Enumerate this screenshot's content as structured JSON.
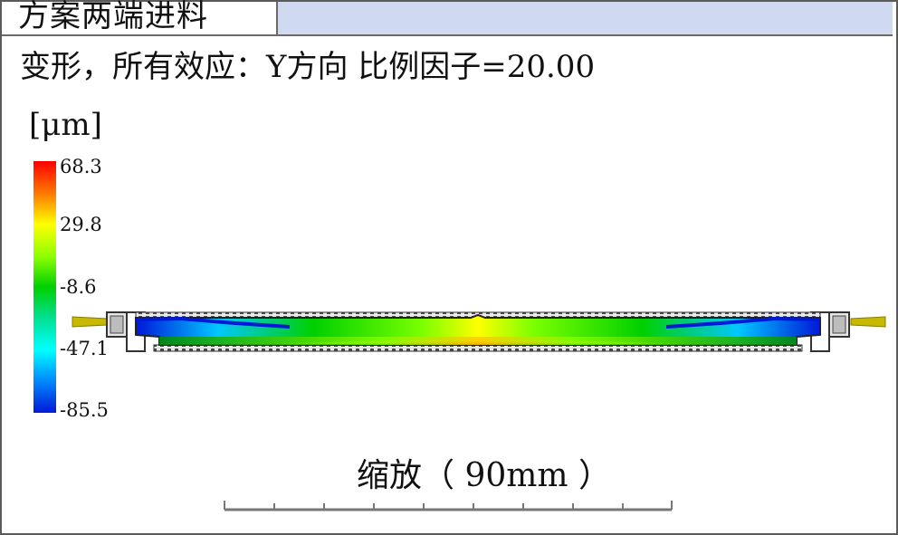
{
  "header": {
    "tab_title": "方案两端进料"
  },
  "plot": {
    "subtitle": "变形，所有效应：Y方向 比例因子=20.00",
    "unit": "[μm]",
    "legend": {
      "max": "68.3",
      "v2": "29.8",
      "v3": "-8.6",
      "v4": "-47.1",
      "min": "-85.5",
      "colors": [
        "#ff0000",
        "#ffff00",
        "#00d000",
        "#00ffff",
        "#0018d8"
      ]
    },
    "scale_bar": {
      "label": "缩放（ 90mm ）"
    }
  },
  "icons": [
    "legend-colorbar",
    "gate-arrow-left-icon",
    "gate-arrow-right-icon"
  ]
}
